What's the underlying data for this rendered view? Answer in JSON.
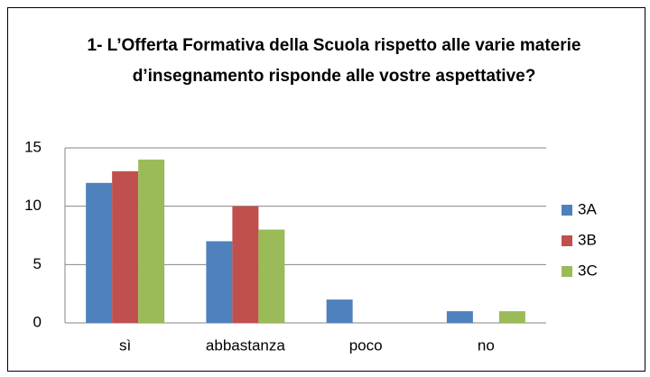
{
  "chart_data": {
    "type": "bar",
    "title": "1- L’Offerta Formativa della Scuola rispetto alle varie materie d’insegnamento risponde alle vostre aspettative?",
    "categories": [
      "sì",
      "abbastanza",
      "poco",
      "no"
    ],
    "series": [
      {
        "name": "3A",
        "color": "#4f81bd",
        "values": [
          12,
          7,
          2,
          1
        ]
      },
      {
        "name": "3B",
        "color": "#c0504d",
        "values": [
          13,
          10,
          0,
          0
        ]
      },
      {
        "name": "3C",
        "color": "#9bbb59",
        "values": [
          14,
          8,
          0,
          1
        ]
      }
    ],
    "ylim": [
      0,
      15
    ],
    "yticks": [
      0,
      5,
      10,
      15
    ],
    "grid": true,
    "legend": "right"
  }
}
